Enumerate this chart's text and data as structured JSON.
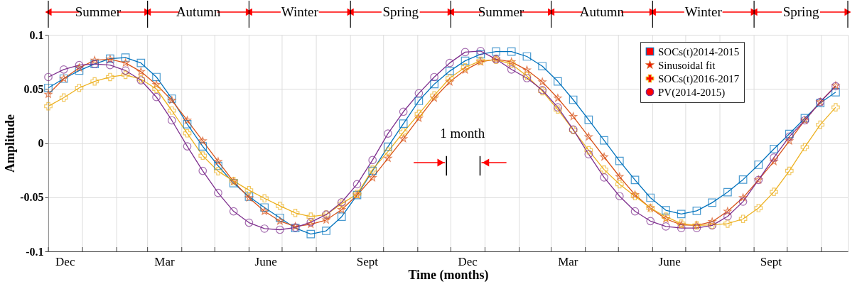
{
  "chart_data": {
    "type": "line",
    "xlabel": "Time (months)",
    "ylabel": "Amplitude",
    "x": [
      "2014-12-01",
      "2014-12-15",
      "2014-12-29",
      "2015-01-12",
      "2015-01-26",
      "2015-02-09",
      "2015-02-23",
      "2015-03-09",
      "2015-03-23",
      "2015-04-06",
      "2015-04-20",
      "2015-05-04",
      "2015-05-18",
      "2015-06-01",
      "2015-06-15",
      "2015-06-29",
      "2015-07-13",
      "2015-07-27",
      "2015-08-10",
      "2015-08-24",
      "2015-09-07",
      "2015-09-21",
      "2015-10-05",
      "2015-10-19",
      "2015-11-02",
      "2015-11-16",
      "2015-11-30",
      "2015-12-14",
      "2015-12-28",
      "2016-01-11",
      "2016-01-25",
      "2016-02-08",
      "2016-02-22",
      "2016-03-07",
      "2016-03-21",
      "2016-04-04",
      "2016-04-18",
      "2016-05-02",
      "2016-05-16",
      "2016-05-30",
      "2016-06-13",
      "2016-06-27",
      "2016-07-11",
      "2016-07-25",
      "2016-08-08",
      "2016-08-22",
      "2016-09-05",
      "2016-09-19",
      "2016-10-03",
      "2016-10-17",
      "2016-10-31",
      "2016-11-14"
    ],
    "series": [
      {
        "name": "SOCs(t)2014-2015",
        "color": "#0072bd",
        "marker": "square",
        "values": [
          0.051,
          0.0595,
          0.067,
          0.073,
          0.078,
          0.079,
          0.074,
          0.061,
          0.041,
          0.0175,
          -0.003,
          -0.021,
          -0.037,
          -0.0495,
          -0.0595,
          -0.069,
          -0.0785,
          -0.084,
          -0.081,
          -0.068,
          -0.048,
          -0.0256,
          -0.0034,
          0.018,
          0.039,
          0.0545,
          0.0665,
          0.076,
          0.082,
          0.0845,
          0.0845,
          0.08,
          0.071,
          0.057,
          0.04,
          0.0215,
          0.0025,
          -0.0165,
          -0.034,
          -0.0505,
          -0.062,
          -0.0655,
          -0.0625,
          -0.055,
          -0.0453,
          -0.0337,
          -0.02,
          -0.0054,
          0.0085,
          0.023,
          0.037,
          0.047
        ]
      },
      {
        "name": "Sinusoidal fit",
        "color": "#d95319",
        "marker": "star",
        "values": [
          0.045,
          0.0595,
          0.0695,
          0.0765,
          0.0775,
          0.074,
          0.066,
          0.054,
          0.0395,
          0.021,
          0.002,
          -0.017,
          -0.0355,
          -0.0505,
          -0.063,
          -0.072,
          -0.077,
          -0.075,
          -0.071,
          -0.0615,
          -0.048,
          -0.032,
          -0.014,
          0.004,
          0.023,
          0.0415,
          0.0565,
          0.0675,
          0.075,
          0.0775,
          0.075,
          0.0675,
          0.0565,
          0.0415,
          0.0245,
          0.0058,
          -0.0128,
          -0.031,
          -0.0477,
          -0.06,
          -0.07,
          -0.0755,
          -0.076,
          -0.0726,
          -0.063,
          -0.0504,
          -0.034,
          -0.017,
          0.002,
          0.021,
          0.038,
          0.053
        ]
      },
      {
        "name": "SOCs(t)2016-2017",
        "color": "#edb120",
        "marker": "cross",
        "values": [
          0.034,
          0.042,
          0.051,
          0.057,
          0.061,
          0.063,
          0.059,
          0.05,
          0.03,
          0.009,
          -0.0116,
          -0.026,
          -0.035,
          -0.0435,
          -0.051,
          -0.058,
          -0.0645,
          -0.068,
          -0.066,
          -0.056,
          -0.047,
          -0.0245,
          -0.0078,
          0.01,
          0.027,
          0.044,
          0.06,
          0.07,
          0.076,
          0.077,
          0.073,
          0.062,
          0.048,
          0.031,
          0.012,
          -0.0066,
          -0.0245,
          -0.038,
          -0.049,
          -0.06,
          -0.068,
          -0.0743,
          -0.076,
          -0.0755,
          -0.0743,
          -0.07,
          -0.06,
          -0.045,
          -0.0256,
          -0.0037,
          0.017,
          0.033
        ]
      },
      {
        "name": "PV(2014-2015)",
        "color": "#7e2f8e",
        "marker": "circle",
        "values": [
          0.061,
          0.068,
          0.072,
          0.073,
          0.072,
          0.067,
          0.058,
          0.0425,
          0.021,
          -0.003,
          -0.0256,
          -0.046,
          -0.063,
          -0.0735,
          -0.079,
          -0.08,
          -0.078,
          -0.073,
          -0.066,
          -0.0546,
          -0.038,
          -0.0157,
          0.0088,
          0.029,
          0.046,
          0.061,
          0.074,
          0.084,
          0.085,
          0.0775,
          0.068,
          0.06,
          0.049,
          0.033,
          0.0125,
          -0.0103,
          -0.0317,
          -0.049,
          -0.063,
          -0.072,
          -0.077,
          -0.0785,
          -0.0785,
          -0.076,
          -0.0677,
          -0.054,
          -0.034,
          -0.0133,
          0.006,
          0.021,
          0.038,
          0.0525
        ]
      }
    ],
    "xlim": [
      "2014-12-01",
      "2016-11-25"
    ],
    "xticks": [
      {
        "value": "2014-12-01",
        "label": null
      },
      {
        "value": "2015-01-01",
        "label": null
      },
      {
        "value": "2015-02-01",
        "label": null
      },
      {
        "value": "2015-03-01",
        "label": null
      },
      {
        "value": "2015-04-01",
        "label": null
      },
      {
        "value": "2015-05-01",
        "label": null
      },
      {
        "value": "2015-06-01",
        "label": null
      },
      {
        "value": "2015-07-01",
        "label": null
      },
      {
        "value": "2015-08-01",
        "label": null
      },
      {
        "value": "2015-09-01",
        "label": null
      },
      {
        "value": "2015-10-01",
        "label": null
      },
      {
        "value": "2015-11-01",
        "label": null
      },
      {
        "value": "2015-12-01",
        "label": null
      },
      {
        "value": "2016-01-01",
        "label": null
      },
      {
        "value": "2016-02-01",
        "label": null
      },
      {
        "value": "2016-03-01",
        "label": null
      },
      {
        "value": "2016-04-01",
        "label": null
      },
      {
        "value": "2016-05-01",
        "label": null
      },
      {
        "value": "2016-06-01",
        "label": null
      },
      {
        "value": "2016-07-01",
        "label": null
      },
      {
        "value": "2016-08-01",
        "label": null
      },
      {
        "value": "2016-09-01",
        "label": null
      },
      {
        "value": "2016-10-01",
        "label": null
      },
      {
        "value": "2016-11-01",
        "label": null
      },
      {
        "value": "2014-12-16",
        "label": "Dec"
      },
      {
        "value": "2015-03-16",
        "label": "Mar"
      },
      {
        "value": "2015-06-16",
        "label": "June"
      },
      {
        "value": "2015-09-16",
        "label": "Sept"
      },
      {
        "value": "2015-12-16",
        "label": "Dec"
      },
      {
        "value": "2016-03-16",
        "label": "Mar"
      },
      {
        "value": "2016-06-16",
        "label": "June"
      },
      {
        "value": "2016-09-16",
        "label": "Sept"
      }
    ],
    "ylim": [
      -0.1,
      0.1
    ],
    "yticks": [
      -0.1,
      -0.05,
      0,
      0.05,
      0.1
    ],
    "annotations": [
      "1 month",
      "Summer",
      "Autumn",
      "Winter",
      "Spring",
      "Summer",
      "Autumn",
      "Winter",
      "Spring"
    ],
    "grid": true,
    "legend": "top right"
  }
}
